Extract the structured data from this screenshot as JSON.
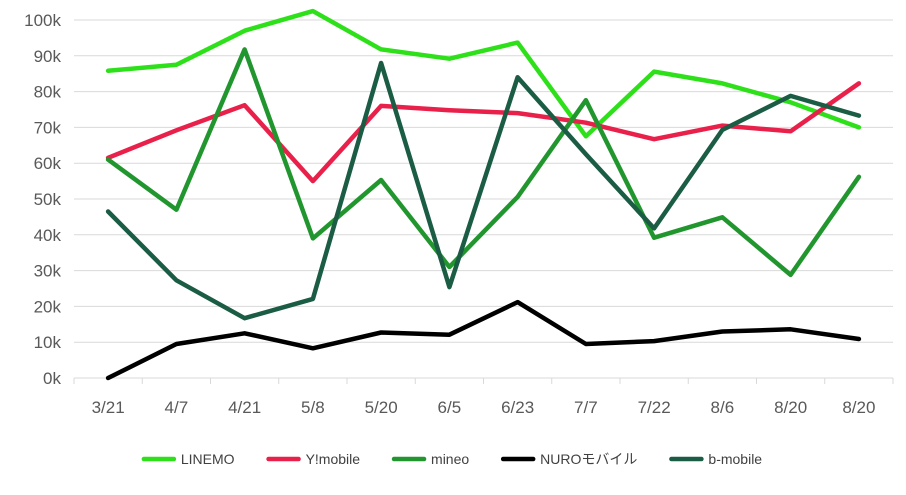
{
  "chart_data": {
    "type": "line",
    "categories": [
      "3/21",
      "4/7",
      "4/21",
      "5/8",
      "5/20",
      "6/5",
      "6/23",
      "7/7",
      "7/22",
      "8/6",
      "8/20",
      "8/20"
    ],
    "y_tick_labels": [
      "0k",
      "10k",
      "20k",
      "30k",
      "40k",
      "50k",
      "60k",
      "70k",
      "80k",
      "90k",
      "100k"
    ],
    "ylim": [
      0,
      100000
    ],
    "grid": "horizontal",
    "legend_position": "bottom",
    "series": [
      {
        "name": "LINEMO",
        "color": "#2ee01a",
        "values": [
          85800,
          87500,
          97000,
          102500,
          91800,
          89200,
          93700,
          67500,
          85600,
          82300,
          77000,
          70000
        ]
      },
      {
        "name": "Y!mobile",
        "color": "#e8204a",
        "values": [
          61500,
          69200,
          76200,
          55000,
          76000,
          74800,
          74000,
          71300,
          66700,
          70500,
          68900,
          82300
        ]
      },
      {
        "name": "mineo",
        "color": "#22962e",
        "values": [
          61000,
          47000,
          91800,
          39000,
          55300,
          31000,
          50600,
          77600,
          39200,
          44900,
          28800,
          56200
        ]
      },
      {
        "name": "NUROモバイル",
        "color": "#000000",
        "values": [
          0,
          9500,
          12500,
          8300,
          12700,
          12100,
          21200,
          9500,
          10300,
          13000,
          13600,
          10900
        ]
      },
      {
        "name": "b-mobile",
        "color": "#1a5c44",
        "values": [
          46500,
          27300,
          16700,
          22100,
          88000,
          25400,
          84000,
          62500,
          41800,
          69300,
          78800,
          73300
        ]
      }
    ]
  }
}
